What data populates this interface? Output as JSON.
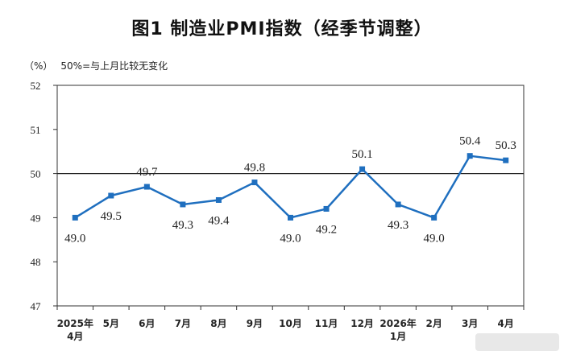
{
  "header": {
    "title": "图1  制造业PMI指数（经季节调整）",
    "unit": "（%）",
    "note": "50%=与上月比较无变化"
  },
  "colors": {
    "line": "#1f6fbf",
    "marker": "#1f6fbf",
    "reference": "#222222"
  },
  "chart_data": {
    "type": "line",
    "title": "图1  制造业PMI指数（经季节调整）",
    "ylabel": "（%）",
    "ylim": [
      47,
      52
    ],
    "yticks": [
      "47",
      "48",
      "49",
      "50",
      "51",
      "52"
    ],
    "categories": [
      [
        "2025年",
        "4月"
      ],
      [
        "5月"
      ],
      [
        "6月"
      ],
      [
        "7月"
      ],
      [
        "8月"
      ],
      [
        "9月"
      ],
      [
        "10月"
      ],
      [
        "11月"
      ],
      [
        "12月"
      ],
      [
        "2026年",
        "1月"
      ],
      [
        "2月"
      ],
      [
        "3月"
      ],
      [
        "4月"
      ]
    ],
    "values": [
      49.0,
      49.5,
      49.7,
      49.3,
      49.4,
      49.8,
      49.0,
      49.2,
      50.1,
      49.3,
      49.0,
      50.4,
      50.3
    ],
    "value_labels": [
      "49.0",
      "49.5",
      "49.7",
      "49.3",
      "49.4",
      "49.8",
      "49.0",
      "49.2",
      "50.1",
      "49.3",
      "49.0",
      "50.4",
      "50.3"
    ],
    "reference_line": 50,
    "grid": false,
    "legend": "none"
  }
}
